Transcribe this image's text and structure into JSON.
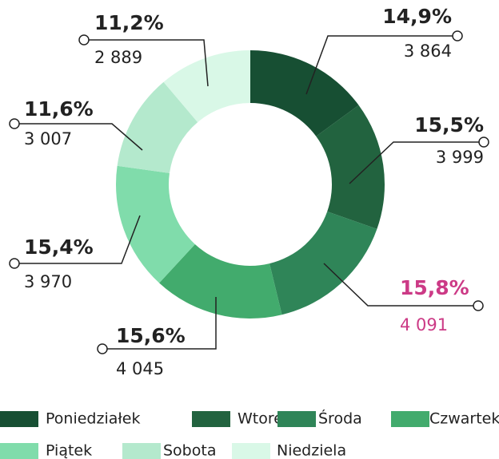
{
  "chart_data": {
    "type": "donut",
    "categories": [
      "Poniedziałek",
      "Wtorek",
      "Środa",
      "Czwartek",
      "Piątek",
      "Sobota",
      "Niedziela"
    ],
    "values": [
      3864,
      3999,
      4091,
      4045,
      3970,
      3007,
      2889
    ],
    "value_labels": [
      "3 864",
      "3 999",
      "4 091",
      "4 045",
      "3 970",
      "3 007",
      "2 889"
    ],
    "percentages": [
      14.9,
      15.5,
      15.8,
      15.6,
      15.4,
      11.6,
      11.2
    ],
    "percentage_labels": [
      "14,9%",
      "15,5%",
      "15,8%",
      "15,6%",
      "15,4%",
      "11,6%",
      "11,2%"
    ],
    "colors": [
      "#174f33",
      "#22633f",
      "#2f8558",
      "#42ab6d",
      "#80dcab",
      "#b4e9cd",
      "#d9f8e7"
    ],
    "label_colors": [
      "#222222",
      "#222222",
      "#cc3a86",
      "#222222",
      "#222222",
      "#222222",
      "#222222"
    ]
  }
}
